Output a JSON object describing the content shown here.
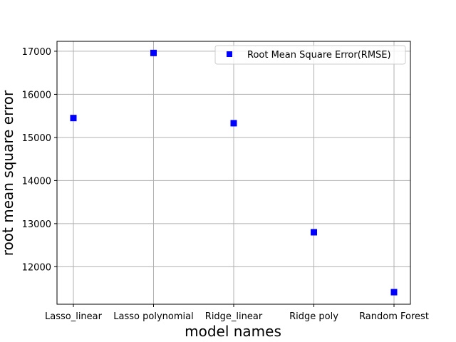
{
  "chart_data": {
    "type": "scatter",
    "title": "",
    "xlabel": "model names",
    "ylabel": "root mean square error",
    "categories": [
      "Lasso_linear",
      "Lasso polynomial",
      "Ridge_linear",
      "Ridge poly",
      "Random Forest"
    ],
    "series": [
      {
        "name": "Root Mean Square Error(RMSE)",
        "values": [
          15450,
          16960,
          15330,
          12800,
          11410
        ],
        "color": "#0000ff",
        "marker": "square"
      }
    ],
    "ylim": [
      11130,
      17230
    ],
    "yticks": [
      12000,
      13000,
      14000,
      15000,
      16000,
      17000
    ],
    "ytick_labels": [
      "12000",
      "13000",
      "14000",
      "15000",
      "16000",
      "17000"
    ],
    "grid": true,
    "legend": "top-right"
  },
  "colors": {
    "marker": "#0000ff",
    "grid": "#b0b0b0",
    "axis": "#000000"
  }
}
